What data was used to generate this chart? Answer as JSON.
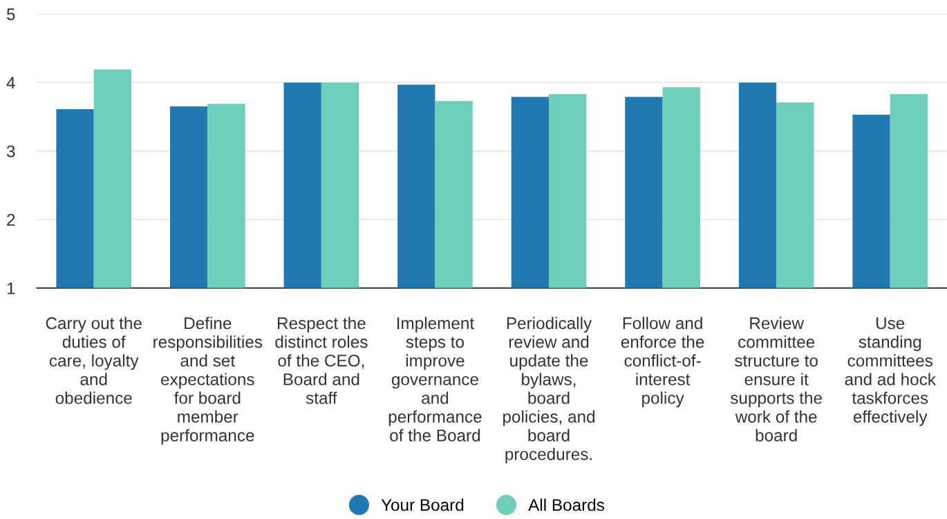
{
  "chart_data": {
    "type": "bar",
    "categories": [
      "Carry out the\nduties of\ncare, loyalty\nand\nobedience",
      "Define\nresponsibilities\nand set\nexpectations\nfor board\nmember\nperformance",
      "Respect the\ndistinct roles\nof the CEO,\nBoard and\nstaff",
      "Implement\nsteps to\nimprove\ngovernance\nand\nperformance\nof the Board",
      "Periodically\nreview and\nupdate the\nbylaws,\nboard\npolicies, and\nboard\nprocedures.",
      "Follow and\nenforce the\nconflict-of-\ninterest\npolicy",
      "Review\ncommittee\nstructure to\nensure it\nsupports the\nwork of the\nboard",
      "Use\nstanding\ncommittees\nand ad hock\ntaskforces\neffectively"
    ],
    "series": [
      {
        "name": "Your Board",
        "color": "#2278b0",
        "values": [
          3.61,
          3.65,
          4.0,
          3.97,
          3.79,
          3.79,
          4.0,
          3.53
        ]
      },
      {
        "name": "All Boards",
        "color": "#6dcfb9",
        "values": [
          4.19,
          3.69,
          4.0,
          3.73,
          3.83,
          3.93,
          3.71,
          3.83
        ]
      }
    ],
    "ylim": [
      1,
      5
    ],
    "yticks": [
      1,
      2,
      3,
      4,
      5
    ],
    "grid": "y",
    "legend": "bottom",
    "marker": "circle"
  }
}
